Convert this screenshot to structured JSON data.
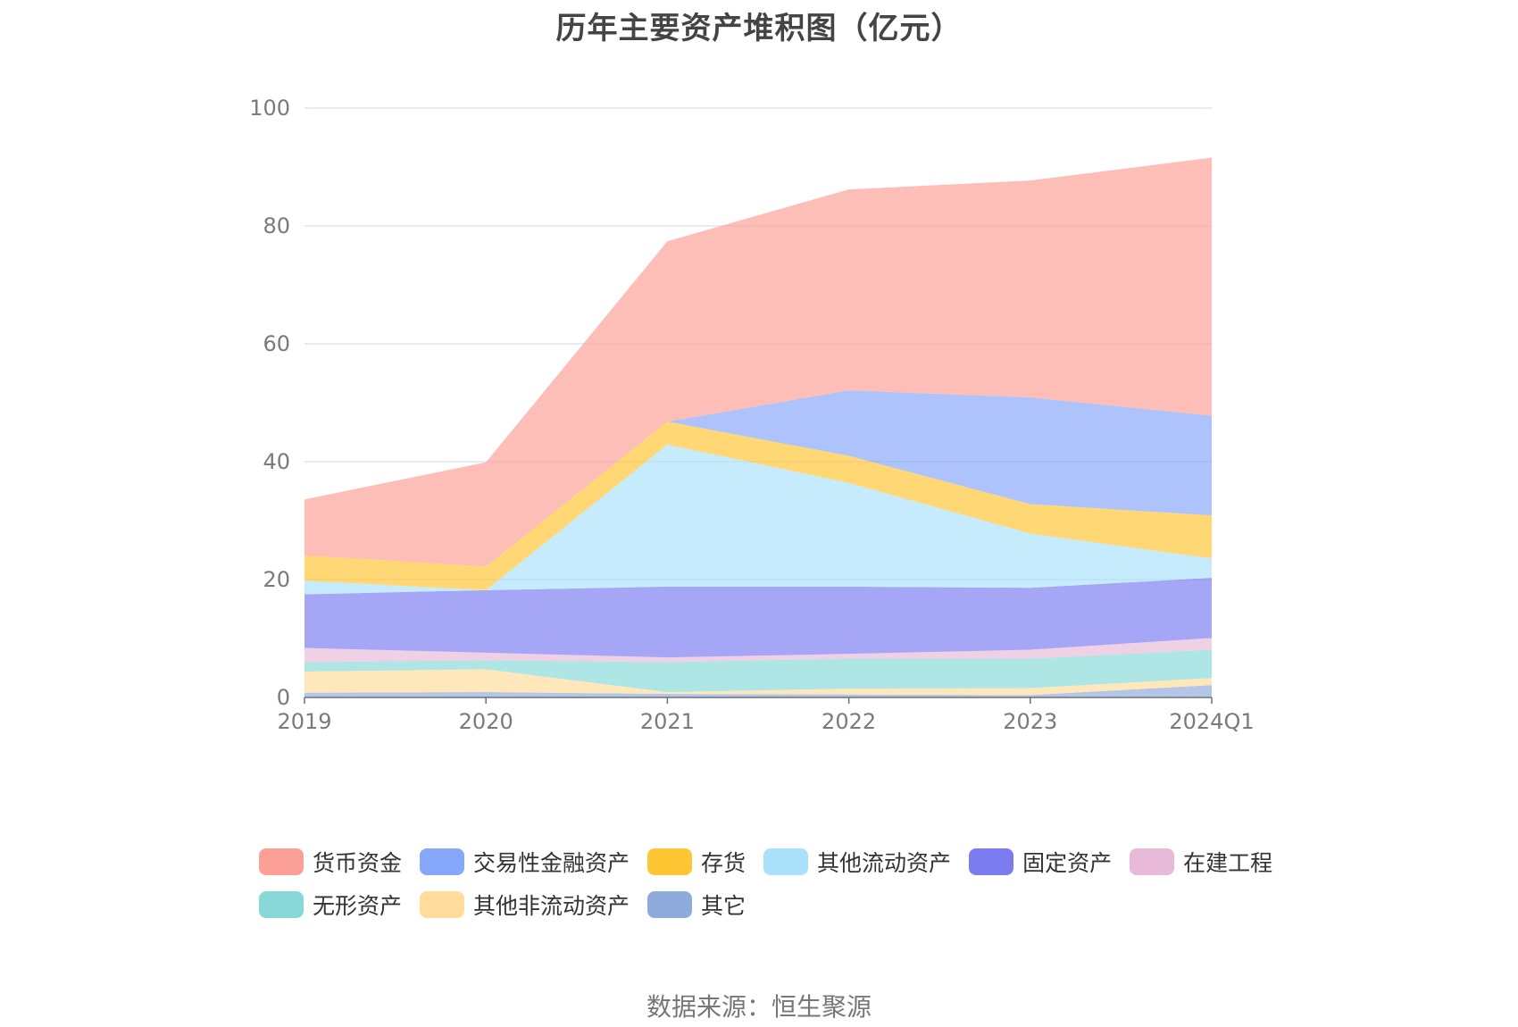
{
  "chart_data": {
    "type": "area",
    "stacked": true,
    "title": "历年主要资产堆积图（亿元）",
    "categories": [
      "2019",
      "2020",
      "2021",
      "2022",
      "2023",
      "2024Q1"
    ],
    "ylim": [
      0,
      100
    ],
    "yticks": [
      "0",
      "20",
      "40",
      "60",
      "80",
      "100"
    ],
    "xlabel": "",
    "ylabel": "",
    "grid": true,
    "legend_position": "bottom",
    "series": [
      {
        "name": "其它",
        "color": "#8fabdb",
        "values": [
          0.8,
          0.9,
          0.6,
          0.5,
          0.4,
          2.1
        ]
      },
      {
        "name": "其他非流动资产",
        "color": "#ffdb9c",
        "values": [
          3.6,
          3.9,
          0.3,
          1.0,
          1.2,
          1.2
        ]
      },
      {
        "name": "无形资产",
        "color": "#88d8d8",
        "values": [
          1.6,
          1.5,
          5.1,
          5.1,
          5.0,
          4.8
        ]
      },
      {
        "name": "在建工程",
        "color": "#e8b9d8",
        "values": [
          2.4,
          1.3,
          0.8,
          0.8,
          1.5,
          2.0
        ]
      },
      {
        "name": "固定资产",
        "color": "#7b7cf0",
        "values": [
          9.1,
          10.6,
          12.0,
          11.4,
          10.5,
          10.2
        ]
      },
      {
        "name": "其他流动资产",
        "color": "#a9e1fa",
        "values": [
          2.3,
          0.0,
          24.1,
          17.6,
          9.2,
          3.3
        ]
      },
      {
        "name": "存货",
        "color": "#ffc634",
        "values": [
          4.3,
          4.0,
          3.9,
          4.6,
          5.0,
          7.3
        ]
      },
      {
        "name": "交易性金融资产",
        "color": "#87a7fb",
        "values": [
          0.0,
          0.0,
          0.0,
          11.1,
          18.1,
          16.9
        ]
      },
      {
        "name": "货币资金",
        "color": "#fc9f97",
        "values": [
          9.5,
          17.7,
          30.6,
          34.1,
          36.8,
          43.8
        ]
      }
    ]
  },
  "legend_order": [
    "货币资金",
    "交易性金融资产",
    "存货",
    "其他流动资产",
    "固定资产",
    "在建工程",
    "无形资产",
    "其他非流动资产",
    "其它"
  ],
  "source_note": "数据来源：恒生聚源"
}
